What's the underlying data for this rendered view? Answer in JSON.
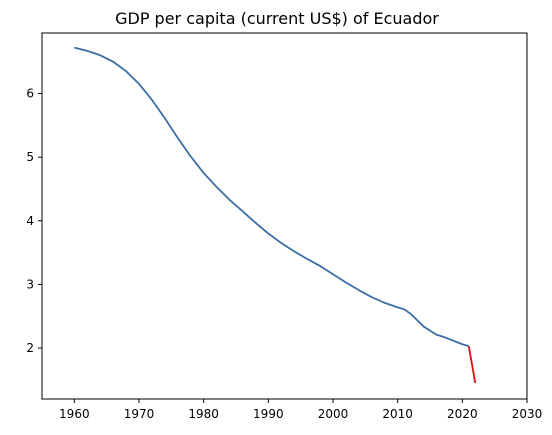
{
  "chart_data": {
    "type": "line",
    "title": "GDP per capita (current US$) of Ecuador",
    "xlabel": "",
    "ylabel": "",
    "xlim": [
      1955,
      2030
    ],
    "ylim": [
      1.2,
      6.95
    ],
    "x_ticks": [
      1960,
      1970,
      1980,
      1990,
      2000,
      2010,
      2020,
      2030
    ],
    "y_ticks": [
      2,
      3,
      4,
      5,
      6
    ],
    "grid": false,
    "colors": {
      "main": "#3a6ea5",
      "highlight": "#e01010"
    },
    "series": [
      {
        "x": [
          1960,
          1962,
          1964,
          1966,
          1968,
          1970,
          1972,
          1974,
          1976,
          1978,
          1980,
          1982,
          1984,
          1986,
          1988,
          1990,
          1992,
          1994,
          1996,
          1998,
          2000,
          2002,
          2004,
          2006,
          2008,
          2010,
          2011,
          2012,
          2014,
          2016,
          2017,
          2018,
          2020,
          2021
        ],
        "y": [
          6.72,
          6.67,
          6.6,
          6.5,
          6.35,
          6.15,
          5.9,
          5.61,
          5.3,
          5.01,
          4.75,
          4.53,
          4.33,
          4.15,
          3.97,
          3.8,
          3.65,
          3.52,
          3.4,
          3.29,
          3.16,
          3.03,
          2.91,
          2.8,
          2.71,
          2.64,
          2.61,
          2.54,
          2.34,
          2.21,
          2.18,
          2.14,
          2.06,
          2.03
        ]
      },
      {
        "x": [
          2021,
          2022
        ],
        "y": [
          2.03,
          1.45
        ]
      }
    ]
  }
}
